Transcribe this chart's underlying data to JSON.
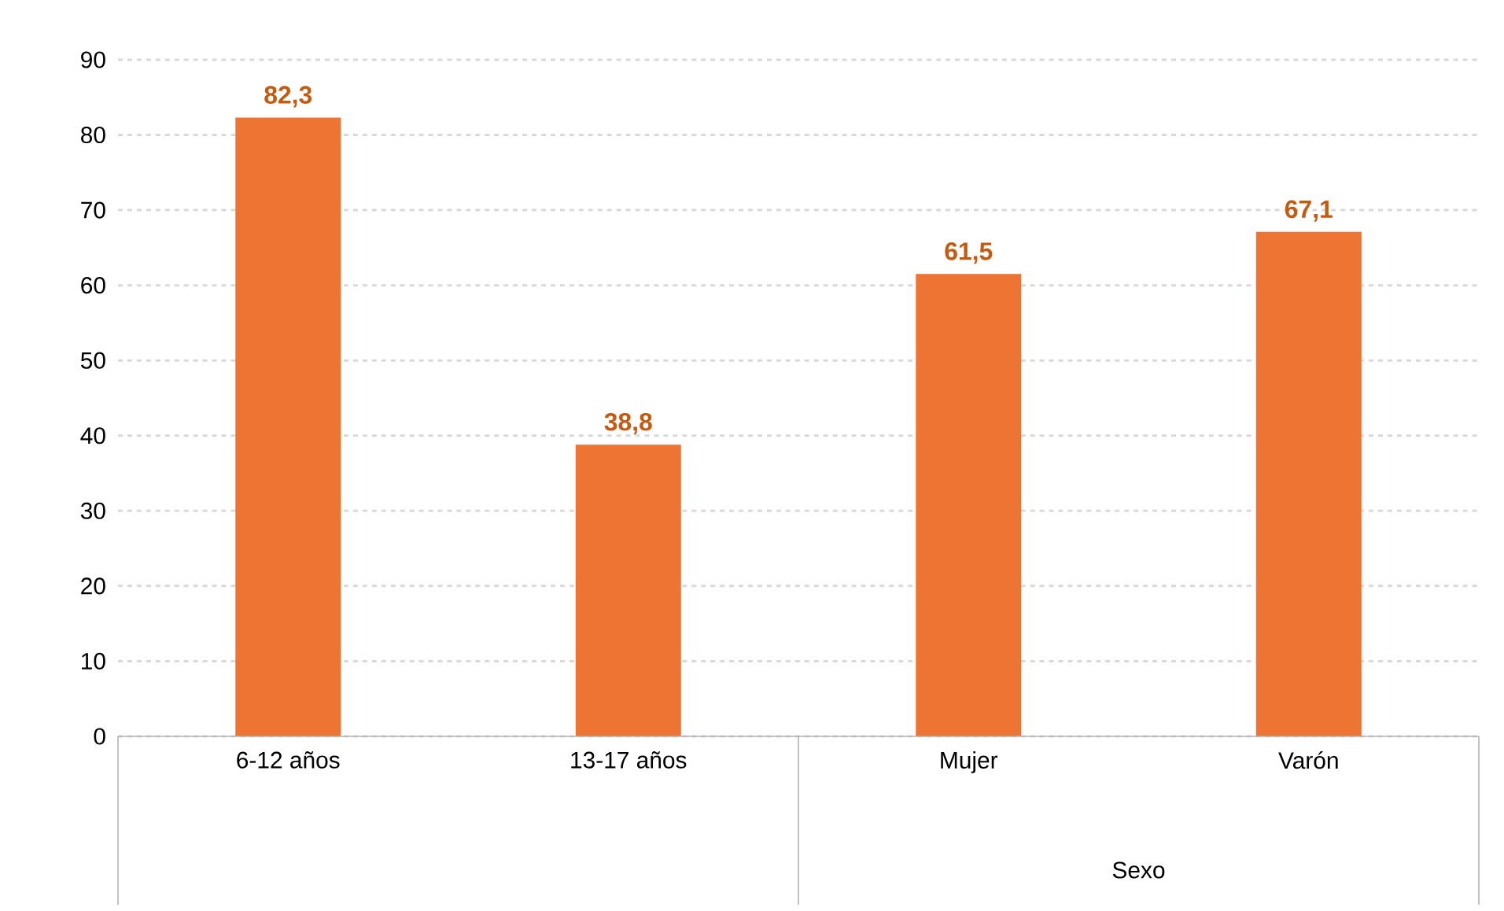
{
  "chart_data": {
    "type": "bar",
    "categories": [
      "6-12 años",
      "13-17 años",
      "Mujer",
      "Varón"
    ],
    "values": [
      82.3,
      38.8,
      61.5,
      67.1
    ],
    "value_labels": [
      "82,3",
      "38,8",
      "61,5",
      "67,1"
    ],
    "color": "#ed7433",
    "ylim": [
      0,
      90
    ],
    "yticks": [
      0,
      10,
      20,
      30,
      40,
      50,
      60,
      70,
      80,
      90
    ],
    "grid": "y",
    "annotations": [
      "Sexo"
    ]
  }
}
